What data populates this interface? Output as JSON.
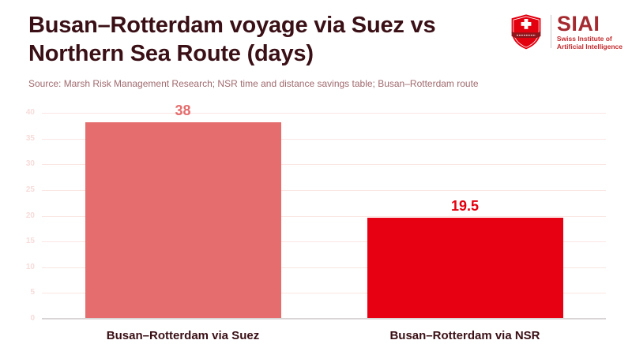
{
  "header": {
    "title": "Busan–Rotterdam voyage via Suez vs Northern Sea Route (days)",
    "source": "Source: Marsh Risk Management Research; NSR time and distance savings table; Busan–Rotterdam route"
  },
  "logo": {
    "wordmark": "SIAI",
    "subtitle_line1": "Swiss Institute of",
    "subtitle_line2": "Artificial Intelligence",
    "shield_red": "#e3000f",
    "banner_dark_red": "#8f161c",
    "wordmark_color": "#a52a30",
    "subtitle_color": "#c22b2e"
  },
  "colors": {
    "title_text": "#3a1016",
    "source_text": "#a06a6e",
    "gridline": "#fae6e3",
    "baseline": "#d9d5d5",
    "tick_text": "#f6dcda"
  },
  "chart_data": {
    "type": "bar",
    "categories": [
      "Busan–Rotterdam via Suez",
      "Busan–Rotterdam via NSR"
    ],
    "values": [
      38,
      19.5
    ],
    "value_labels": [
      "38",
      "19.5"
    ],
    "bar_colors": [
      "#e56d6d",
      "#e60012"
    ],
    "value_label_colors": [
      "#e56d6d",
      "#e3000f"
    ],
    "title": "Busan–Rotterdam voyage via Suez vs Northern Sea Route (days)",
    "xlabel": "",
    "ylabel": "",
    "ylim": [
      0,
      40
    ],
    "yticks": [
      0,
      5,
      10,
      15,
      20,
      25,
      30,
      35,
      40
    ],
    "grid": true,
    "legend": false
  }
}
